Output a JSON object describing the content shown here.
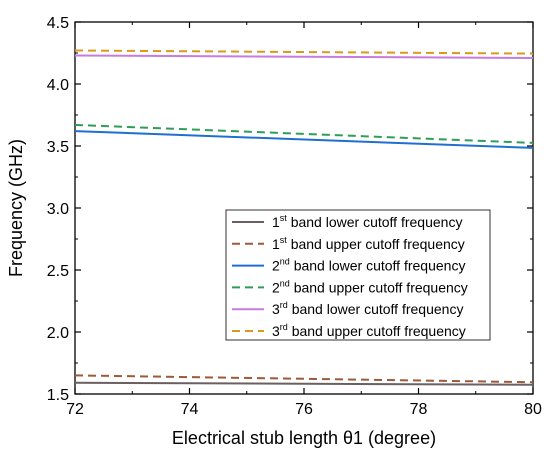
{
  "chart_data": {
    "type": "line",
    "title": "",
    "xlabel": "Electrical stub length θ1 (degree)",
    "ylabel": "Frequency (GHz)",
    "xlim": [
      72,
      80
    ],
    "ylim": [
      1.5,
      4.5
    ],
    "xticks": [
      "72",
      "74",
      "76",
      "78",
      "80"
    ],
    "yticks": [
      "1.5",
      "2.0",
      "2.5",
      "3.0",
      "3.5",
      "4.0",
      "4.5"
    ],
    "grid": false,
    "legend_position": "center-right",
    "series": [
      {
        "name_prefix": "1",
        "name_sup": "st",
        "name_rest": " band lower cutoff frequency",
        "color": "#6b5f5f",
        "dash": "solid",
        "x": [
          72,
          80
        ],
        "y": [
          1.59,
          1.575
        ]
      },
      {
        "name_prefix": "1",
        "name_sup": "st",
        "name_rest": " band upper cutoff frequency",
        "color": "#9b5a3a",
        "dash": "dashed",
        "x": [
          72,
          80
        ],
        "y": [
          1.65,
          1.595
        ]
      },
      {
        "name_prefix": "2",
        "name_sup": "nd",
        "name_rest": " band lower cutoff frequency",
        "color": "#1f6fd1",
        "dash": "solid",
        "x": [
          72,
          80
        ],
        "y": [
          3.62,
          3.485
        ]
      },
      {
        "name_prefix": "2",
        "name_sup": "nd",
        "name_rest": " band upper cutoff frequency",
        "color": "#2e9e55",
        "dash": "dashed",
        "x": [
          72,
          80
        ],
        "y": [
          3.67,
          3.525
        ]
      },
      {
        "name_prefix": "3",
        "name_sup": "rd",
        "name_rest": " band lower cutoff frequency",
        "color": "#c77be0",
        "dash": "solid",
        "x": [
          72,
          80
        ],
        "y": [
          4.23,
          4.21
        ]
      },
      {
        "name_prefix": "3",
        "name_sup": "rd",
        "name_rest": " band upper cutoff frequency",
        "color": "#d99a1b",
        "dash": "dashed",
        "x": [
          72,
          80
        ],
        "y": [
          4.27,
          4.245
        ]
      }
    ]
  }
}
